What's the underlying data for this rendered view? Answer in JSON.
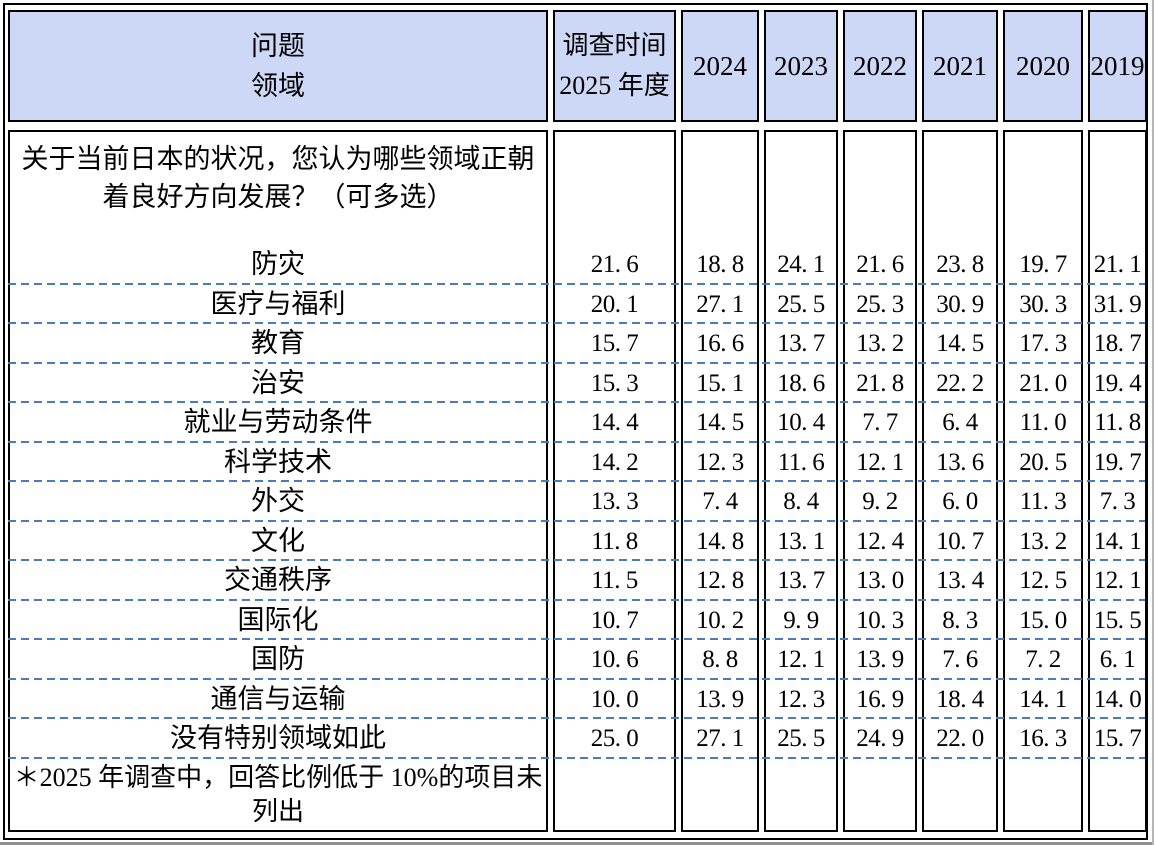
{
  "header": {
    "col1": {
      "line1": "问题",
      "line2": "领域"
    },
    "col2": {
      "line1": "调查时间",
      "line2": "2025 年度"
    }
  },
  "question": "关于当前日本的状况，您认为哪些领域正朝着良好方向发展？（可多选）",
  "footnote": "＊2025 年调查中，回答比例低于 10%的项目未列出",
  "colors": {
    "header_bg": "#ccd8f5",
    "border": "#000000",
    "dashed_line": "#4a7cbc"
  },
  "chart_data": {
    "type": "table",
    "title": "",
    "categories": [
      "防灾",
      "医疗与福利",
      "教育",
      "治安",
      "就业与劳动条件",
      "科学技术",
      "外交",
      "文化",
      "交通秩序",
      "国际化",
      "国防",
      "通信与运输",
      "没有特别领域如此"
    ],
    "series": [
      {
        "name": "2025",
        "values": [
          21.6,
          20.1,
          15.7,
          15.3,
          14.4,
          14.2,
          13.3,
          11.8,
          11.5,
          10.7,
          10.6,
          10.0,
          25.0
        ]
      },
      {
        "name": "2024",
        "values": [
          18.8,
          27.1,
          16.6,
          15.1,
          14.5,
          12.3,
          7.4,
          14.8,
          12.8,
          10.2,
          8.8,
          13.9,
          27.1
        ]
      },
      {
        "name": "2023",
        "values": [
          24.1,
          25.5,
          13.7,
          18.6,
          10.4,
          11.6,
          8.4,
          13.1,
          13.7,
          9.9,
          12.1,
          12.3,
          25.5
        ]
      },
      {
        "name": "2022",
        "values": [
          21.6,
          25.3,
          13.2,
          21.8,
          7.7,
          12.1,
          9.2,
          12.4,
          13.0,
          10.3,
          13.9,
          16.9,
          24.9
        ]
      },
      {
        "name": "2021",
        "values": [
          23.8,
          30.9,
          14.5,
          22.2,
          6.4,
          13.6,
          6.0,
          10.7,
          13.4,
          8.3,
          7.6,
          18.4,
          22.0
        ]
      },
      {
        "name": "2020",
        "values": [
          19.7,
          30.3,
          17.3,
          21.0,
          11.0,
          20.5,
          11.3,
          13.2,
          12.5,
          15.0,
          7.2,
          14.1,
          16.3
        ]
      },
      {
        "name": "2019",
        "values": [
          21.1,
          31.9,
          18.7,
          19.4,
          11.8,
          19.7,
          7.3,
          14.1,
          12.1,
          15.5,
          6.1,
          14.0,
          15.7
        ]
      }
    ]
  }
}
